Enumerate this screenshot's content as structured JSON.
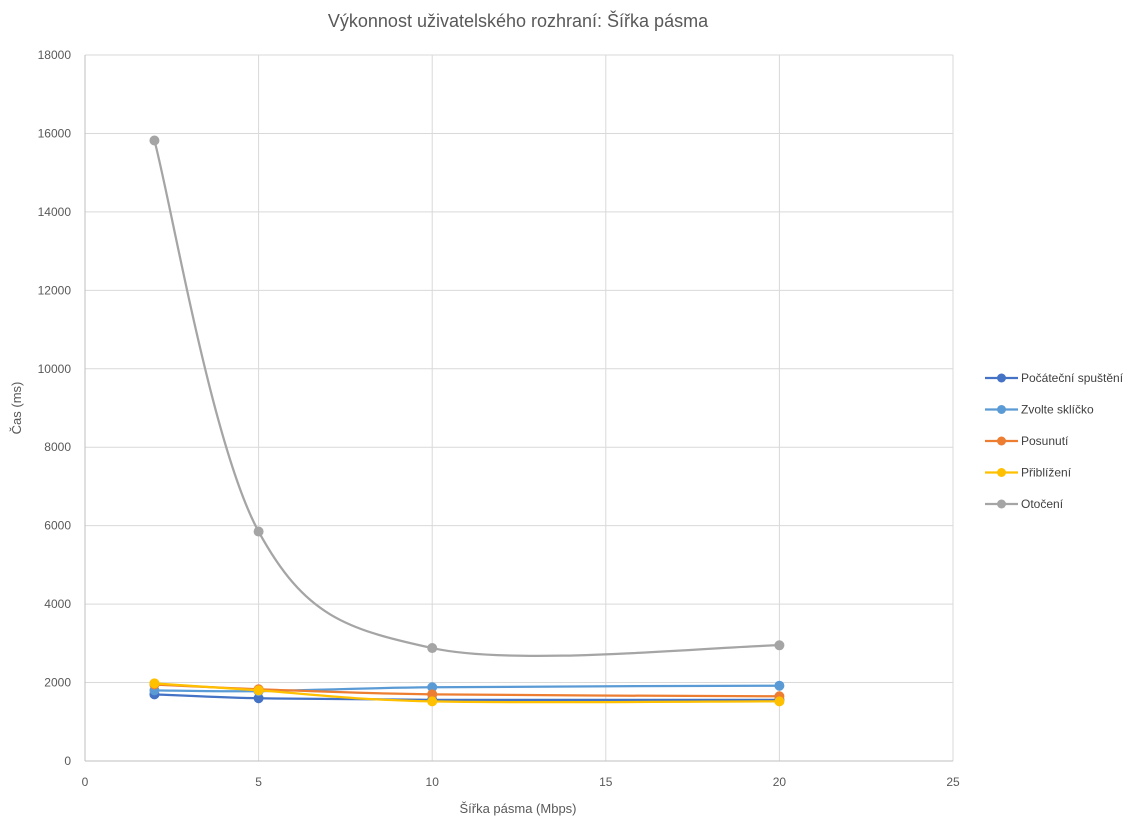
{
  "chart_data": {
    "type": "scatter",
    "title": "Výkonnost uživatelského rozhraní: Šířka pásma",
    "xlabel": "Šířka pásma (Mbps)",
    "ylabel": "Čas (ms)",
    "xlim": [
      0,
      25
    ],
    "ylim": [
      0,
      18000
    ],
    "x_ticks": [
      0,
      5,
      10,
      15,
      20,
      25
    ],
    "y_ticks": [
      0,
      2000,
      4000,
      6000,
      8000,
      10000,
      12000,
      14000,
      16000,
      18000
    ],
    "grid": true,
    "legend_position": "right",
    "smooth_lines": true,
    "x": [
      2,
      5,
      10,
      20
    ],
    "series": [
      {
        "name": "Počáteční spuštění",
        "color": "#4472C4",
        "values": [
          1700,
          1600,
          1560,
          1560
        ]
      },
      {
        "name": "Zvolte sklíčko",
        "color": "#5B9BD5",
        "values": [
          1800,
          1780,
          1880,
          1920
        ]
      },
      {
        "name": "Posunutí",
        "color": "#ED7D31",
        "values": [
          1950,
          1830,
          1700,
          1650
        ]
      },
      {
        "name": "Přiblížení",
        "color": "#FFC000",
        "values": [
          1980,
          1800,
          1520,
          1520
        ]
      },
      {
        "name": "Otočení",
        "color": "#A5A5A5",
        "values": [
          15820,
          5850,
          2880,
          2950
        ]
      }
    ]
  }
}
